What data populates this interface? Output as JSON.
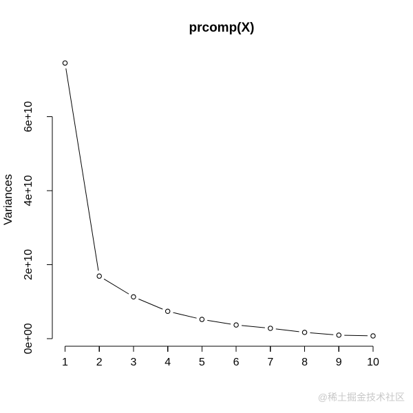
{
  "chart_data": {
    "type": "line",
    "title": "prcomp(X)",
    "xlabel": "",
    "ylabel": "Variances",
    "x": [
      1,
      2,
      3,
      4,
      5,
      6,
      7,
      8,
      9,
      10
    ],
    "series": [
      {
        "name": "variances",
        "values": [
          74500000000,
          16900000000,
          11300000000,
          7400000000,
          5200000000,
          3700000000,
          2800000000,
          1700000000,
          950000000,
          750000000
        ]
      }
    ],
    "x_tick_labels": [
      "1",
      "2",
      "3",
      "4",
      "5",
      "6",
      "7",
      "8",
      "9",
      "10"
    ],
    "y_tick_labels": [
      "0e+00",
      "2e+10",
      "4e+10",
      "6e+10"
    ],
    "y_tick_values": [
      0,
      20000000000,
      40000000000,
      60000000000
    ],
    "ylim": [
      0,
      74500000000
    ],
    "grid": false,
    "legend": "none",
    "marker": "open-circle",
    "line_type": "points-connected-with-gaps"
  },
  "watermark": {
    "text": "@稀土掘金技术社区"
  },
  "colors": {
    "foreground": "#000000",
    "background": "#ffffff",
    "watermark": "#c8c8c8"
  }
}
